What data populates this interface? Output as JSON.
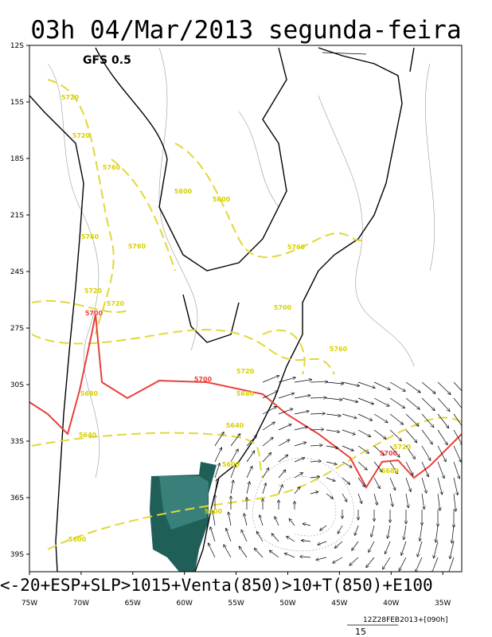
{
  "header": {
    "title": "03h 04/Mar/2013 segunda-feira",
    "model": "GFS 0.5"
  },
  "map": {
    "lat_labels": [
      "12S",
      "15S",
      "18S",
      "21S",
      "24S",
      "27S",
      "30S",
      "33S",
      "36S",
      "39S"
    ],
    "lon_labels": [
      "75W",
      "70W",
      "65W",
      "60W",
      "55W",
      "50W",
      "45W",
      "40W",
      "35W"
    ],
    "contour_labels": [
      "5720",
      "5720",
      "5760",
      "5800",
      "5800",
      "5760",
      "5760",
      "5720",
      "5720",
      "5700",
      "5700",
      "5680",
      "5640",
      "5680",
      "5760",
      "5700",
      "5720",
      "5640",
      "5600",
      "5600",
      "5700",
      "5720",
      "5680",
      "5600",
      "5760"
    ]
  },
  "footer": {
    "description": "<-20+ESP+SLP>1015+Venta(850)>10+T(850)+E100",
    "run": "12Z28FEB2013+[090h]",
    "vector_scale": "15"
  }
}
